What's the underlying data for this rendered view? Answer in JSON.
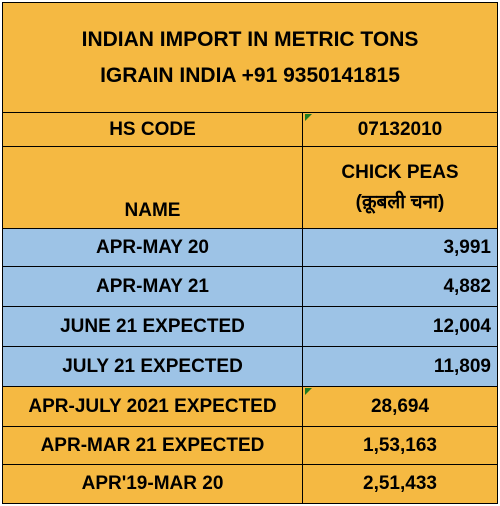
{
  "title": {
    "line1": "INDIAN IMPORT IN METRIC TONS",
    "line2": "IGRAIN INDIA +91 9350141815"
  },
  "header": {
    "hs_code_label": "HS CODE",
    "hs_code_value": "07132010",
    "name_label": "NAME",
    "product_line1": "CHICK PEAS",
    "product_line2": "(क़ूबली चना)"
  },
  "rows": [
    {
      "label": "APR-MAY 20",
      "value": "3,991"
    },
    {
      "label": "APR-MAY 21",
      "value": "4,882"
    },
    {
      "label": "JUNE 21 EXPECTED",
      "value": "12,004"
    },
    {
      "label": "JULY 21 EXPECTED",
      "value": "11,809"
    },
    {
      "label": "APR-JULY 2021 EXPECTED",
      "value": "28,694"
    },
    {
      "label": "APR-MAR 21 EXPECTED",
      "value": "1,53,163"
    },
    {
      "label": "APR'19-MAR 20",
      "value": "2,51,433"
    }
  ],
  "colors": {
    "gold": "#f5b942",
    "blue": "#9dc3e6",
    "comment_marker": "#1f7a1f"
  }
}
